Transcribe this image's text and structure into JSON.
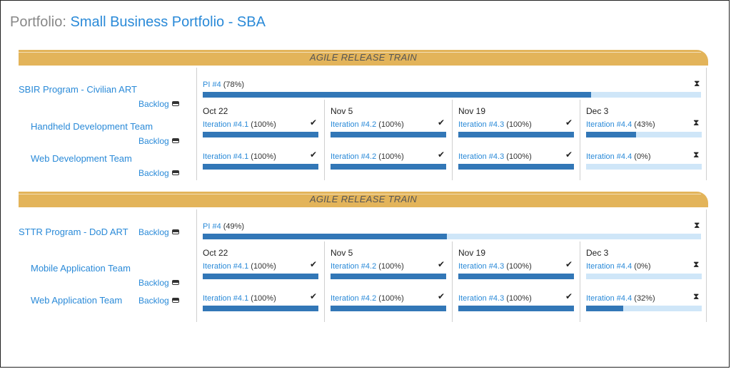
{
  "portfolio": {
    "label": "Portfolio:",
    "name": "Small Business Portfolio - SBA"
  },
  "arts": [
    {
      "banner": "AGILE RELEASE TRAIN",
      "name": "SBIR Program - Civilian ART",
      "backlog_label": "Backlog",
      "pi": {
        "label": "PI #4",
        "pct_text": "(78%)",
        "progress": 0.78,
        "status_icon": "hourglass-icon"
      },
      "dates": [
        "Oct 22",
        "Nov 5",
        "Nov 19",
        "Dec 3"
      ],
      "teams": [
        {
          "name": "Handheld Development Team",
          "backlog_label": "Backlog",
          "iterations": [
            {
              "label": "Iteration #4.1",
              "pct_text": "(100%)",
              "progress": 1.0,
              "status": "check-icon"
            },
            {
              "label": "Iteration #4.2",
              "pct_text": "(100%)",
              "progress": 1.0,
              "status": "check-icon"
            },
            {
              "label": "Iteration #4.3",
              "pct_text": "(100%)",
              "progress": 1.0,
              "status": "check-icon"
            },
            {
              "label": "Iteration #4.4",
              "pct_text": "(43%)",
              "progress": 0.43,
              "status": "hourglass-icon"
            }
          ]
        },
        {
          "name": "Web Development Team",
          "backlog_label": "Backlog",
          "iterations": [
            {
              "label": "Iteration #4.1",
              "pct_text": "(100%)",
              "progress": 1.0,
              "status": "check-icon"
            },
            {
              "label": "Iteration #4.2",
              "pct_text": "(100%)",
              "progress": 1.0,
              "status": "check-icon"
            },
            {
              "label": "Iteration #4.3",
              "pct_text": "(100%)",
              "progress": 1.0,
              "status": "check-icon"
            },
            {
              "label": "Iteration #4.4",
              "pct_text": "(0%)",
              "progress": 0.0,
              "status": "hourglass-icon"
            }
          ]
        }
      ]
    },
    {
      "banner": "AGILE RELEASE TRAIN",
      "name": "STTR Program - DoD ART",
      "backlog_label": "Backlog",
      "pi": {
        "label": "PI #4",
        "pct_text": "(49%)",
        "progress": 0.49,
        "status_icon": "hourglass-icon"
      },
      "dates": [
        "Oct 22",
        "Nov 5",
        "Nov 19",
        "Dec 3"
      ],
      "teams": [
        {
          "name": "Mobile Application Team",
          "backlog_label": "Backlog",
          "iterations": [
            {
              "label": "Iteration #4.1",
              "pct_text": "(100%)",
              "progress": 1.0,
              "status": "check-icon"
            },
            {
              "label": "Iteration #4.2",
              "pct_text": "(100%)",
              "progress": 1.0,
              "status": "check-icon"
            },
            {
              "label": "Iteration #4.3",
              "pct_text": "(100%)",
              "progress": 1.0,
              "status": "check-icon"
            },
            {
              "label": "Iteration #4.4",
              "pct_text": "(0%)",
              "progress": 0.0,
              "status": "hourglass-icon"
            }
          ]
        },
        {
          "name": "Web Application Team",
          "backlog_label": "Backlog",
          "iterations": [
            {
              "label": "Iteration #4.1",
              "pct_text": "(100%)",
              "progress": 1.0,
              "status": "check-icon"
            },
            {
              "label": "Iteration #4.2",
              "pct_text": "(100%)",
              "progress": 1.0,
              "status": "check-icon"
            },
            {
              "label": "Iteration #4.3",
              "pct_text": "(100%)",
              "progress": 1.0,
              "status": "check-icon"
            },
            {
              "label": "Iteration #4.4",
              "pct_text": "(32%)",
              "progress": 0.32,
              "status": "hourglass-icon"
            }
          ]
        }
      ]
    }
  ],
  "status_glyphs": {
    "check-icon": "✔",
    "hourglass-icon": "⧗"
  },
  "colors": {
    "banner": "#e3b45a",
    "link": "#2a8ad8",
    "bar_fill": "#3277b7",
    "bar_track": "#cfe6f8"
  }
}
